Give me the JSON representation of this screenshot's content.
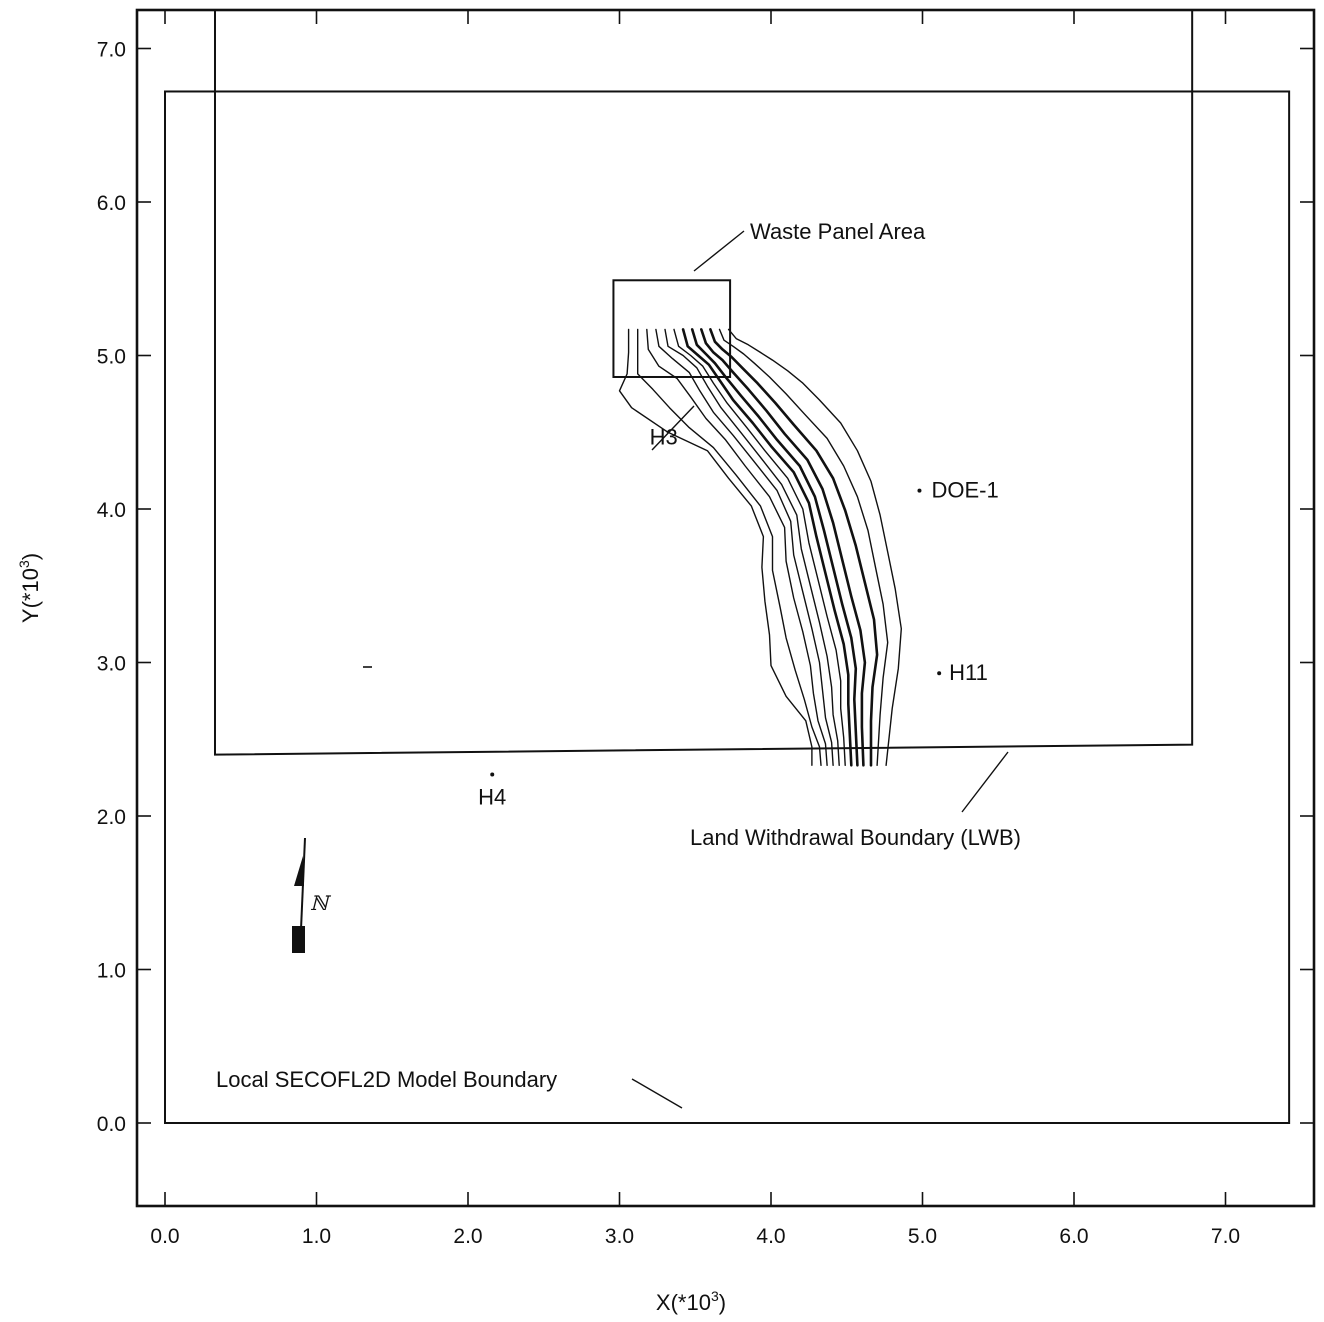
{
  "chart_data": {
    "type": "map",
    "x_axis": {
      "label": "X(*10",
      "label_sup": "3",
      "label_end": ")",
      "ticks": [
        0.0,
        1.0,
        2.0,
        3.0,
        4.0,
        5.0,
        6.0,
        7.0
      ],
      "tick_labels": [
        "0.0",
        "1.0",
        "2.0",
        "3.0",
        "4.0",
        "5.0",
        "6.0",
        "7.0"
      ]
    },
    "y_axis": {
      "label": "Y(*10",
      "label_sup": "3",
      "label_end": ")",
      "ticks": [
        0.0,
        1.0,
        2.0,
        3.0,
        4.0,
        5.0,
        6.0,
        7.0
      ],
      "tick_labels": [
        "0.0",
        "1.0",
        "2.0",
        "3.0",
        "4.0",
        "5.0",
        "6.0",
        "7.0"
      ]
    },
    "annotations": {
      "waste_panel_area": "Waste Panel Area",
      "land_withdrawal_boundary": "Land Withdrawal Boundary (LWB)",
      "model_boundary": "Local SECOFL2D Model Boundary",
      "north_symbol": "ℕ"
    },
    "wells": [
      {
        "name": "H3",
        "x": 3.45,
        "y": 4.72
      },
      {
        "name": "DOE-1",
        "x": 4.98,
        "y": 4.12
      },
      {
        "name": "H11",
        "x": 5.11,
        "y": 2.93
      },
      {
        "name": "H4",
        "x": 2.16,
        "y": 2.27
      }
    ],
    "boundaries": {
      "model": {
        "x": [
          0.0,
          7.42
        ],
        "y": [
          0.0,
          6.72
        ]
      },
      "lwb": {
        "x": [
          0.33,
          6.78
        ],
        "y": [
          2.4,
          6.72
        ]
      },
      "waste_panel": {
        "x": [
          2.96,
          3.73
        ],
        "y": [
          4.86,
          5.49
        ]
      }
    },
    "pathlines": [
      [
        [
          3.06,
          5.17
        ],
        [
          3.06,
          5.02
        ],
        [
          3.05,
          4.88
        ],
        [
          3.0,
          4.77
        ],
        [
          3.08,
          4.66
        ],
        [
          3.32,
          4.5
        ],
        [
          3.58,
          4.38
        ],
        [
          3.72,
          4.2
        ],
        [
          3.87,
          4.02
        ],
        [
          3.95,
          3.82
        ],
        [
          3.94,
          3.62
        ],
        [
          3.96,
          3.4
        ],
        [
          3.99,
          3.18
        ],
        [
          4.0,
          2.98
        ],
        [
          4.1,
          2.78
        ],
        [
          4.23,
          2.62
        ],
        [
          4.27,
          2.45
        ],
        [
          4.27,
          2.33
        ]
      ],
      [
        [
          3.12,
          5.17
        ],
        [
          3.12,
          5.0
        ],
        [
          3.12,
          4.88
        ],
        [
          3.22,
          4.78
        ],
        [
          3.33,
          4.66
        ],
        [
          3.46,
          4.53
        ],
        [
          3.62,
          4.4
        ],
        [
          3.77,
          4.22
        ],
        [
          3.93,
          4.02
        ],
        [
          4.01,
          3.82
        ],
        [
          4.01,
          3.6
        ],
        [
          4.06,
          3.36
        ],
        [
          4.1,
          3.16
        ],
        [
          4.16,
          2.95
        ],
        [
          4.22,
          2.76
        ],
        [
          4.27,
          2.58
        ],
        [
          4.32,
          2.45
        ],
        [
          4.33,
          2.33
        ]
      ],
      [
        [
          3.18,
          5.17
        ],
        [
          3.19,
          5.04
        ],
        [
          3.26,
          4.93
        ],
        [
          3.38,
          4.85
        ],
        [
          3.47,
          4.73
        ],
        [
          3.57,
          4.59
        ],
        [
          3.7,
          4.45
        ],
        [
          3.83,
          4.28
        ],
        [
          3.99,
          4.08
        ],
        [
          4.09,
          3.88
        ],
        [
          4.1,
          3.66
        ],
        [
          4.15,
          3.42
        ],
        [
          4.21,
          3.2
        ],
        [
          4.26,
          2.98
        ],
        [
          4.28,
          2.8
        ],
        [
          4.31,
          2.62
        ],
        [
          4.36,
          2.47
        ],
        [
          4.37,
          2.33
        ]
      ],
      [
        [
          3.24,
          5.17
        ],
        [
          3.26,
          5.06
        ],
        [
          3.35,
          4.98
        ],
        [
          3.46,
          4.89
        ],
        [
          3.53,
          4.77
        ],
        [
          3.62,
          4.63
        ],
        [
          3.75,
          4.48
        ],
        [
          3.88,
          4.32
        ],
        [
          4.04,
          4.12
        ],
        [
          4.13,
          3.92
        ],
        [
          4.15,
          3.7
        ],
        [
          4.21,
          3.46
        ],
        [
          4.27,
          3.22
        ],
        [
          4.32,
          3.0
        ],
        [
          4.34,
          2.82
        ],
        [
          4.36,
          2.64
        ],
        [
          4.4,
          2.48
        ],
        [
          4.41,
          2.33
        ]
      ],
      [
        [
          3.3,
          5.17
        ],
        [
          3.32,
          5.06
        ],
        [
          3.42,
          5.0
        ],
        [
          3.51,
          4.92
        ],
        [
          3.58,
          4.8
        ],
        [
          3.67,
          4.66
        ],
        [
          3.8,
          4.5
        ],
        [
          3.92,
          4.35
        ],
        [
          4.07,
          4.16
        ],
        [
          4.17,
          3.96
        ],
        [
          4.2,
          3.74
        ],
        [
          4.26,
          3.5
        ],
        [
          4.32,
          3.26
        ],
        [
          4.37,
          3.04
        ],
        [
          4.4,
          2.84
        ],
        [
          4.41,
          2.66
        ],
        [
          4.44,
          2.49
        ],
        [
          4.45,
          2.33
        ]
      ],
      [
        [
          3.36,
          5.17
        ],
        [
          3.39,
          5.06
        ],
        [
          3.47,
          5.0
        ],
        [
          3.55,
          4.93
        ],
        [
          3.62,
          4.82
        ],
        [
          3.71,
          4.69
        ],
        [
          3.84,
          4.53
        ],
        [
          3.96,
          4.38
        ],
        [
          4.11,
          4.2
        ],
        [
          4.21,
          4.0
        ],
        [
          4.25,
          3.78
        ],
        [
          4.31,
          3.54
        ],
        [
          4.37,
          3.3
        ],
        [
          4.43,
          3.08
        ],
        [
          4.46,
          2.88
        ],
        [
          4.46,
          2.7
        ],
        [
          4.48,
          2.51
        ],
        [
          4.49,
          2.33
        ]
      ],
      [
        [
          3.42,
          5.17
        ],
        [
          3.45,
          5.06
        ],
        [
          3.52,
          5.0
        ],
        [
          3.59,
          4.94
        ],
        [
          3.66,
          4.84
        ],
        [
          3.75,
          4.71
        ],
        [
          3.88,
          4.56
        ],
        [
          4.0,
          4.41
        ],
        [
          4.15,
          4.24
        ],
        [
          4.25,
          4.04
        ],
        [
          4.3,
          3.82
        ],
        [
          4.36,
          3.58
        ],
        [
          4.42,
          3.34
        ],
        [
          4.48,
          3.12
        ],
        [
          4.51,
          2.92
        ],
        [
          4.51,
          2.73
        ],
        [
          4.52,
          2.53
        ],
        [
          4.53,
          2.33
        ]
      ],
      [
        [
          3.48,
          5.17
        ],
        [
          3.51,
          5.07
        ],
        [
          3.57,
          5.01
        ],
        [
          3.63,
          4.95
        ],
        [
          3.7,
          4.86
        ],
        [
          3.8,
          4.74
        ],
        [
          3.92,
          4.6
        ],
        [
          4.04,
          4.45
        ],
        [
          4.19,
          4.28
        ],
        [
          4.29,
          4.08
        ],
        [
          4.35,
          3.86
        ],
        [
          4.41,
          3.62
        ],
        [
          4.47,
          3.38
        ],
        [
          4.53,
          3.16
        ],
        [
          4.56,
          2.96
        ],
        [
          4.55,
          2.76
        ],
        [
          4.56,
          2.55
        ],
        [
          4.57,
          2.33
        ]
      ],
      [
        [
          3.54,
          5.17
        ],
        [
          3.57,
          5.08
        ],
        [
          3.62,
          5.02
        ],
        [
          3.68,
          4.97
        ],
        [
          3.75,
          4.89
        ],
        [
          3.85,
          4.78
        ],
        [
          3.97,
          4.64
        ],
        [
          4.09,
          4.49
        ],
        [
          4.24,
          4.32
        ],
        [
          4.34,
          4.13
        ],
        [
          4.41,
          3.91
        ],
        [
          4.47,
          3.67
        ],
        [
          4.53,
          3.43
        ],
        [
          4.59,
          3.21
        ],
        [
          4.62,
          3.0
        ],
        [
          4.6,
          2.8
        ],
        [
          4.6,
          2.58
        ],
        [
          4.61,
          2.33
        ]
      ],
      [
        [
          3.6,
          5.17
        ],
        [
          3.63,
          5.09
        ],
        [
          3.68,
          5.04
        ],
        [
          3.74,
          4.99
        ],
        [
          3.81,
          4.92
        ],
        [
          3.91,
          4.82
        ],
        [
          4.03,
          4.69
        ],
        [
          4.15,
          4.55
        ],
        [
          4.3,
          4.38
        ],
        [
          4.41,
          4.2
        ],
        [
          4.49,
          3.99
        ],
        [
          4.56,
          3.76
        ],
        [
          4.62,
          3.52
        ],
        [
          4.68,
          3.28
        ],
        [
          4.7,
          3.05
        ],
        [
          4.67,
          2.84
        ],
        [
          4.66,
          2.62
        ],
        [
          4.66,
          2.33
        ]
      ],
      [
        [
          3.66,
          5.17
        ],
        [
          3.69,
          5.1
        ],
        [
          3.75,
          5.06
        ],
        [
          3.82,
          5.01
        ],
        [
          3.89,
          4.95
        ],
        [
          3.99,
          4.86
        ],
        [
          4.1,
          4.75
        ],
        [
          4.22,
          4.62
        ],
        [
          4.37,
          4.46
        ],
        [
          4.48,
          4.28
        ],
        [
          4.57,
          4.08
        ],
        [
          4.64,
          3.86
        ],
        [
          4.69,
          3.62
        ],
        [
          4.74,
          3.38
        ],
        [
          4.77,
          3.13
        ],
        [
          4.74,
          2.9
        ],
        [
          4.72,
          2.66
        ],
        [
          4.7,
          2.33
        ]
      ],
      [
        [
          3.72,
          5.17
        ],
        [
          3.77,
          5.11
        ],
        [
          3.85,
          5.07
        ],
        [
          3.93,
          5.02
        ],
        [
          4.01,
          4.97
        ],
        [
          4.11,
          4.9
        ],
        [
          4.21,
          4.82
        ],
        [
          4.32,
          4.71
        ],
        [
          4.46,
          4.56
        ],
        [
          4.57,
          4.38
        ],
        [
          4.66,
          4.18
        ],
        [
          4.72,
          3.96
        ],
        [
          4.77,
          3.72
        ],
        [
          4.82,
          3.48
        ],
        [
          4.86,
          3.22
        ],
        [
          4.84,
          2.96
        ],
        [
          4.8,
          2.7
        ],
        [
          4.76,
          2.33
        ]
      ]
    ]
  }
}
